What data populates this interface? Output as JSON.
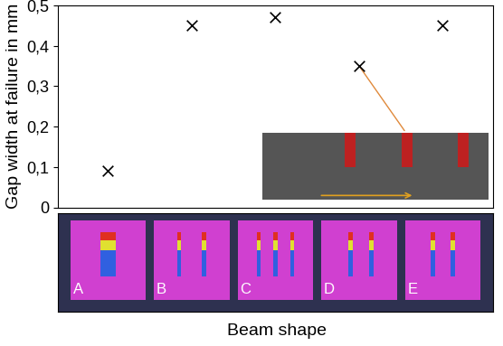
{
  "chart_data": {
    "type": "scatter",
    "categories": [
      "A",
      "B",
      "C",
      "D",
      "E"
    ],
    "values": [
      0.09,
      0.45,
      0.47,
      0.35,
      0.45
    ],
    "color": "#000000",
    "marker": "x",
    "y_label": "Gap width at failure in mm",
    "x_label": "Beam shape",
    "ylim": [
      0,
      0.5
    ],
    "yticks": [
      0,
      {
        "value": 0.1,
        "label": "0,1"
      },
      {
        "value": 0.2,
        "label": "0,2"
      },
      {
        "value": 0.3,
        "label": "0,3"
      },
      {
        "value": 0.4,
        "label": "0,4"
      },
      {
        "value": 0.5,
        "label": "0,5"
      }
    ],
    "grid": false
  }
}
